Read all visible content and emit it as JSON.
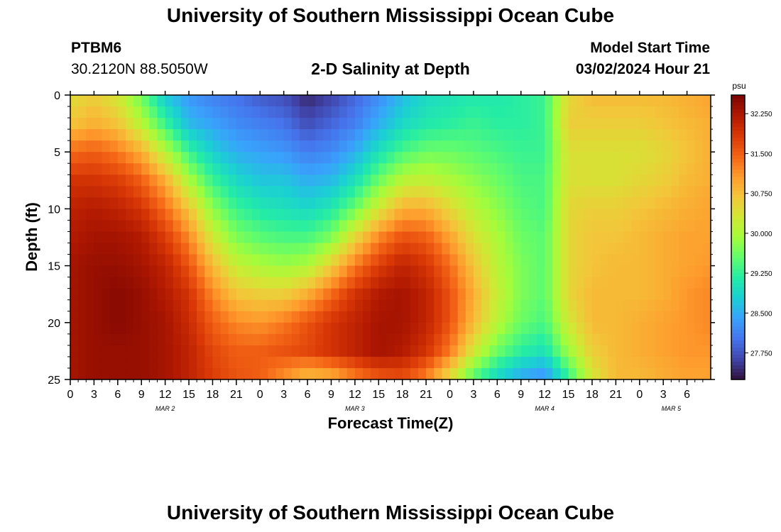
{
  "header": {
    "title": "University of Southern Mississippi Ocean Cube",
    "station": "PTBM6",
    "coords": "30.2120N  88.5050W",
    "plot_title": "2-D Salinity at Depth",
    "model_start_label": "Model Start Time",
    "model_start_time": "03/02/2024 Hour 21"
  },
  "footer": {
    "title": "University of Southern Mississippi Ocean Cube"
  },
  "colors": {
    "background": "#ffffff",
    "text": "#000000",
    "colormap": [
      "#30123b",
      "#4145ab",
      "#4675ed",
      "#39a2fc",
      "#1bcfd4",
      "#24eca6",
      "#61fc6c",
      "#a4fc3b",
      "#d1e834",
      "#f3c63a",
      "#fe9b2d",
      "#f36315",
      "#d93806",
      "#b11901",
      "#7a0402"
    ]
  },
  "chart_data": {
    "type": "heatmap",
    "title": "2-D Salinity at Depth",
    "xlabel": "Forecast Time(Z)",
    "ylabel": "Depth (ft)",
    "x_range_hours": [
      0,
      81
    ],
    "ylim": [
      0,
      25
    ],
    "y_inverted": true,
    "y_ticks": [
      0,
      5,
      10,
      15,
      20,
      25
    ],
    "x_tick_labels": [
      "0",
      "3",
      "6",
      "9",
      "12",
      "15",
      "18",
      "21",
      "0",
      "3",
      "6",
      "9",
      "12",
      "15",
      "18",
      "21",
      "0",
      "3",
      "6",
      "9",
      "12",
      "15",
      "18",
      "21",
      "0",
      "3",
      "6"
    ],
    "date_labels": [
      {
        "text": "MAR 2",
        "hour": 12
      },
      {
        "text": "MAR 3",
        "hour": 36
      },
      {
        "text": "MAR 4",
        "hour": 60
      },
      {
        "text": "MAR 5",
        "hour": 76
      }
    ],
    "colorbar": {
      "units": "psu",
      "min": 27.25,
      "max": 32.6,
      "tick_values": [
        32.25,
        31.5,
        30.75,
        30.0,
        29.25,
        28.5,
        27.75
      ],
      "tick_labels": [
        "32.250",
        "31.500",
        "30.750",
        "30.000",
        "29.250",
        "28.500",
        "27.750"
      ]
    },
    "grid": false,
    "salinity_depth_levels_ft": [
      0,
      2.5,
      5,
      7.5,
      10,
      12.5,
      15,
      17.5,
      20,
      22.5,
      25
    ],
    "salinity_profiles": [
      {
        "hour": 0,
        "psu": [
          30.4,
          30.7,
          31.4,
          31.9,
          32.1,
          32.2,
          32.3,
          32.3,
          32.3,
          32.3,
          32.3
        ]
      },
      {
        "hour": 3,
        "psu": [
          30.6,
          30.9,
          31.5,
          31.9,
          32.2,
          32.3,
          32.4,
          32.4,
          32.4,
          32.4,
          32.4
        ]
      },
      {
        "hour": 6,
        "psu": [
          30.3,
          30.7,
          31.3,
          31.8,
          32.1,
          32.3,
          32.4,
          32.5,
          32.5,
          32.4,
          32.4
        ]
      },
      {
        "hour": 9,
        "psu": [
          29.6,
          30.1,
          30.9,
          31.5,
          31.9,
          32.2,
          32.3,
          32.4,
          32.4,
          32.4,
          32.4
        ]
      },
      {
        "hour": 12,
        "psu": [
          28.7,
          29.3,
          30.1,
          30.9,
          31.4,
          31.8,
          32.1,
          32.2,
          32.3,
          32.3,
          32.3
        ]
      },
      {
        "hour": 15,
        "psu": [
          28.3,
          28.6,
          29.3,
          30.0,
          30.7,
          31.2,
          31.6,
          31.9,
          32.0,
          32.1,
          32.1
        ]
      },
      {
        "hour": 18,
        "psu": [
          28.1,
          28.4,
          28.8,
          29.3,
          29.8,
          30.3,
          30.8,
          31.2,
          31.5,
          31.7,
          31.8
        ]
      },
      {
        "hour": 21,
        "psu": [
          28.0,
          28.2,
          28.5,
          28.9,
          29.3,
          29.7,
          30.2,
          30.7,
          31.2,
          31.5,
          31.6
        ]
      },
      {
        "hour": 24,
        "psu": [
          27.8,
          28.1,
          28.4,
          28.7,
          29.1,
          29.5,
          30.0,
          30.6,
          31.1,
          31.5,
          31.5
        ]
      },
      {
        "hour": 27,
        "psu": [
          27.7,
          28.0,
          28.3,
          28.7,
          29.0,
          29.4,
          29.9,
          30.6,
          31.3,
          31.6,
          31.1
        ]
      },
      {
        "hour": 30,
        "psu": [
          27.4,
          27.7,
          28.1,
          28.5,
          28.9,
          29.4,
          30.0,
          30.9,
          31.6,
          31.7,
          30.7
        ]
      },
      {
        "hour": 33,
        "psu": [
          27.6,
          27.9,
          28.2,
          28.6,
          29.1,
          29.7,
          30.6,
          31.4,
          31.9,
          31.9,
          30.8
        ]
      },
      {
        "hour": 36,
        "psu": [
          27.9,
          28.1,
          28.5,
          29.0,
          29.6,
          30.5,
          31.3,
          31.9,
          32.1,
          32.1,
          31.2
        ]
      },
      {
        "hour": 39,
        "psu": [
          28.2,
          28.5,
          29.0,
          29.6,
          30.3,
          31.2,
          31.8,
          32.2,
          32.3,
          32.3,
          31.5
        ]
      },
      {
        "hour": 42,
        "psu": [
          28.6,
          28.9,
          29.4,
          30.1,
          30.9,
          31.6,
          32.1,
          32.3,
          32.3,
          32.2,
          31.6
        ]
      },
      {
        "hour": 45,
        "psu": [
          28.9,
          29.1,
          29.6,
          30.2,
          30.9,
          31.5,
          31.9,
          32.1,
          32.1,
          31.9,
          31.2
        ]
      },
      {
        "hour": 48,
        "psu": [
          29.0,
          29.2,
          29.6,
          30.0,
          30.5,
          31.0,
          31.4,
          31.6,
          31.6,
          31.3,
          30.4
        ]
      },
      {
        "hour": 51,
        "psu": [
          29.1,
          29.3,
          29.5,
          29.8,
          30.1,
          30.4,
          30.7,
          30.9,
          30.8,
          30.3,
          29.4
        ]
      },
      {
        "hour": 54,
        "psu": [
          29.1,
          29.2,
          29.4,
          29.6,
          29.8,
          30.0,
          30.1,
          30.2,
          30.1,
          29.6,
          28.8
        ]
      },
      {
        "hour": 57,
        "psu": [
          29.2,
          29.2,
          29.3,
          29.4,
          29.5,
          29.6,
          29.7,
          29.7,
          29.6,
          29.2,
          28.4
        ]
      },
      {
        "hour": 60,
        "psu": [
          29.3,
          29.3,
          29.3,
          29.4,
          29.4,
          29.5,
          29.5,
          29.5,
          29.4,
          29.0,
          28.2
        ]
      },
      {
        "hour": 63,
        "psu": [
          30.5,
          30.6,
          30.4,
          30.4,
          30.5,
          30.5,
          30.5,
          30.5,
          30.3,
          29.9,
          29.2
        ]
      },
      {
        "hour": 66,
        "psu": [
          30.8,
          30.6,
          30.4,
          30.4,
          30.6,
          30.7,
          30.7,
          30.8,
          30.8,
          30.6,
          30.3
        ]
      },
      {
        "hour": 69,
        "psu": [
          30.8,
          30.6,
          30.4,
          30.4,
          30.6,
          30.7,
          30.8,
          30.8,
          30.8,
          30.8,
          30.8
        ]
      },
      {
        "hour": 72,
        "psu": [
          30.8,
          30.6,
          30.4,
          30.5,
          30.7,
          30.8,
          30.8,
          30.8,
          30.9,
          30.9,
          30.8
        ]
      },
      {
        "hour": 75,
        "psu": [
          30.8,
          30.7,
          30.5,
          30.6,
          30.8,
          30.9,
          30.9,
          30.9,
          31.0,
          31.0,
          30.9
        ]
      },
      {
        "hour": 78,
        "psu": [
          30.9,
          30.8,
          30.7,
          30.8,
          30.9,
          31.0,
          31.0,
          31.1,
          31.1,
          31.1,
          31.0
        ]
      },
      {
        "hour": 81,
        "psu": [
          31.0,
          30.9,
          30.9,
          30.9,
          31.0,
          31.0,
          31.1,
          31.2,
          31.2,
          31.1,
          31.0
        ]
      }
    ]
  }
}
